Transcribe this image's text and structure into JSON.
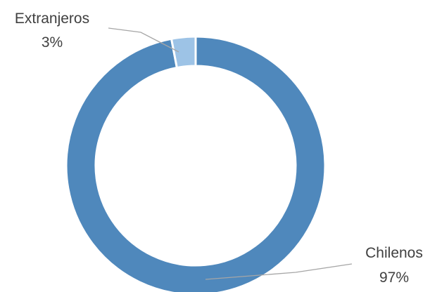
{
  "chart_data": {
    "type": "pie",
    "donut": true,
    "title": "",
    "legend": "none",
    "slices": [
      {
        "name": "Chilenos",
        "value": 97,
        "label": "97%",
        "color": "#4f88bc"
      },
      {
        "name": "Extranjeros",
        "value": 3,
        "label": "3%",
        "color": "#9dc3e6"
      }
    ]
  }
}
